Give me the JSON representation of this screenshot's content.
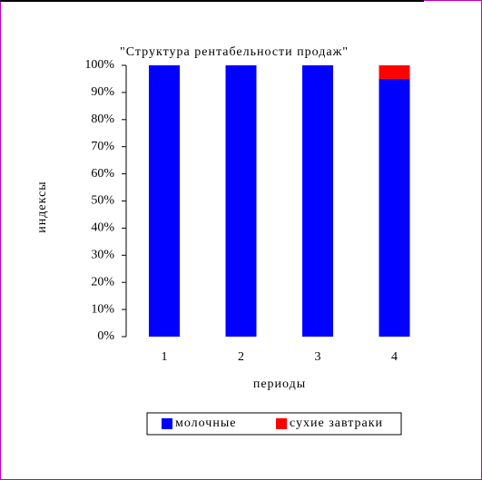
{
  "chart_data": {
    "type": "stacked_bar",
    "title": "\"Структура рентабельности продаж\"",
    "x_label": "периоды",
    "y_label": "индексы",
    "categories": [
      "1",
      "2",
      "3",
      "4"
    ],
    "series": [
      {
        "name": "молочные",
        "color": "#0000ff",
        "values": [
          100,
          100,
          100,
          95
        ]
      },
      {
        "name": "сухие завтраки",
        "color": "#ff0000",
        "values": [
          0,
          0,
          0,
          5
        ]
      }
    ],
    "ylim": [
      0,
      100
    ],
    "yticks": [
      {
        "value": 0,
        "label": "0%"
      },
      {
        "value": 10,
        "label": "10%"
      },
      {
        "value": 20,
        "label": "20%"
      },
      {
        "value": 30,
        "label": "30%"
      },
      {
        "value": 40,
        "label": "40%"
      },
      {
        "value": 50,
        "label": "50%"
      },
      {
        "value": 60,
        "label": "60%"
      },
      {
        "value": 70,
        "label": "70%"
      },
      {
        "value": 80,
        "label": "80%"
      },
      {
        "value": 90,
        "label": "90%"
      },
      {
        "value": 100,
        "label": "100%"
      }
    ]
  }
}
